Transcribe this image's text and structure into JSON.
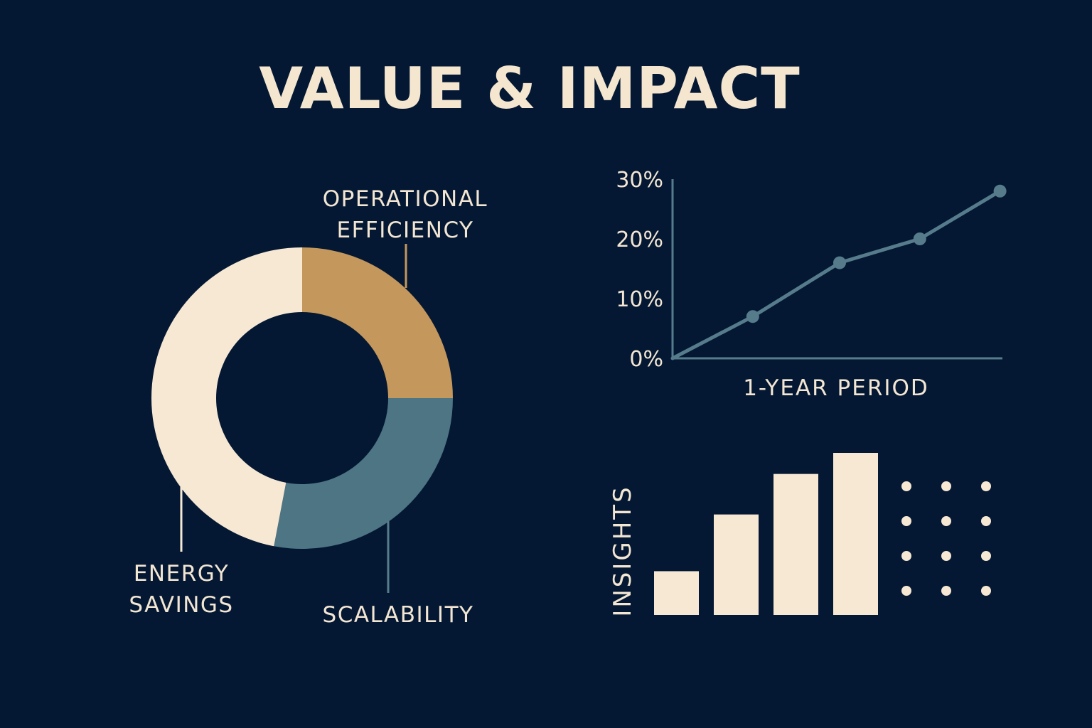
{
  "title": "VALUE & IMPACT",
  "colors": {
    "background": "#041833",
    "cream": "#f7e8d4",
    "gold": "#c4975c",
    "teal": "#4d7584",
    "line": "#567c8c",
    "text": "#f3e6d3"
  },
  "chart_data": [
    {
      "type": "pie",
      "variant": "donut",
      "slices": [
        {
          "label": [
            "OPERATIONAL",
            "EFFICIENCY"
          ],
          "value": 25,
          "color": "#c4975c"
        },
        {
          "label": [
            "SCALABILITY"
          ],
          "value": 28,
          "color": "#4d7584"
        },
        {
          "label": [
            "ENERGY",
            "SAVINGS"
          ],
          "value": 47,
          "color": "#f7e8d4"
        }
      ]
    },
    {
      "type": "line",
      "title": "",
      "xlabel": "1-YEAR PERIOD",
      "ylabel": "",
      "yticks": [
        "0%",
        "10%",
        "20%",
        "30%"
      ],
      "ylim": [
        0,
        30
      ],
      "xlim": [
        0,
        5
      ],
      "series": [
        {
          "values": [
            {
              "x": 0,
              "y": 0
            },
            {
              "x": 1.2,
              "y": 7
            },
            {
              "x": 2.5,
              "y": 16
            },
            {
              "x": 3.7,
              "y": 20
            },
            {
              "x": 4.9,
              "y": 28
            }
          ]
        }
      ],
      "marker_points": [
        1,
        2,
        3,
        4
      ],
      "grid": false
    },
    {
      "type": "bar",
      "ylabel": "INSIGHTS",
      "categories": [
        "",
        "",
        "",
        ""
      ],
      "values": [
        27,
        62,
        87,
        100
      ],
      "ylim": [
        0,
        100
      ]
    }
  ],
  "dot_grid": {
    "rows": 4,
    "cols": 3
  }
}
